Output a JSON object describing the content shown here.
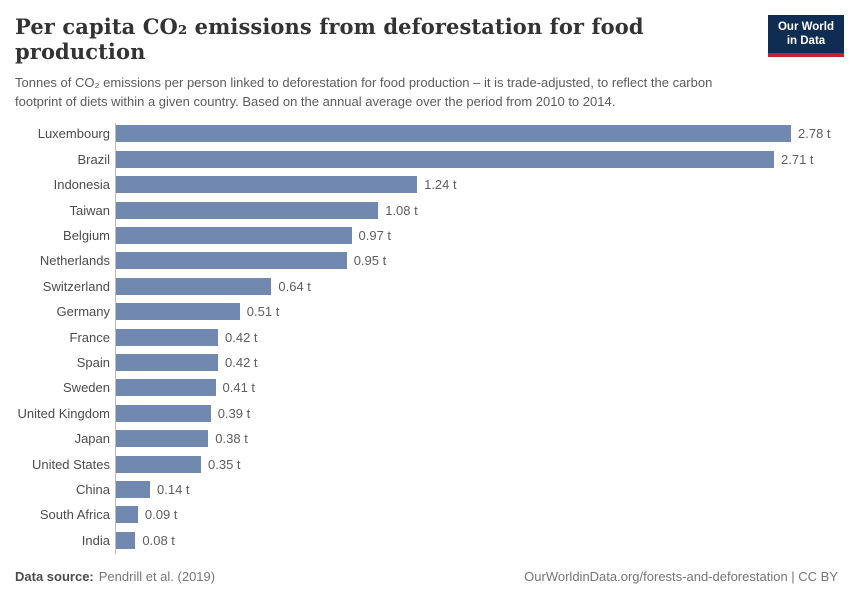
{
  "header": {
    "title": "Per capita CO₂ emissions from deforestation for food production",
    "subtitle": "Tonnes of CO₂ emissions per person linked to deforestation for food production – it is trade-adjusted, to reflect the carbon footprint of diets within a given country. Based on the annual average over the period from 2010 to 2014."
  },
  "logo": {
    "line1": "Our World",
    "line2": "in Data",
    "background_color": "#0f2d52",
    "accent_color": "#c0232b"
  },
  "chart_data": {
    "type": "bar",
    "orientation": "horizontal",
    "title": "Per capita CO₂ emissions from deforestation for food production",
    "categories": [
      "Luxembourg",
      "Brazil",
      "Indonesia",
      "Taiwan",
      "Belgium",
      "Netherlands",
      "Switzerland",
      "Germany",
      "France",
      "Spain",
      "Sweden",
      "United Kingdom",
      "Japan",
      "United States",
      "China",
      "South Africa",
      "India"
    ],
    "values": [
      2.78,
      2.71,
      1.24,
      1.08,
      0.97,
      0.95,
      0.64,
      0.51,
      0.42,
      0.42,
      0.41,
      0.39,
      0.38,
      0.35,
      0.14,
      0.09,
      0.08
    ],
    "value_labels": [
      "2.78 t",
      "2.71 t",
      "1.24 t",
      "1.08 t",
      "0.97 t",
      "0.95 t",
      "0.64 t",
      "0.51 t",
      "0.42 t",
      "0.42 t",
      "0.41 t",
      "0.39 t",
      "0.38 t",
      "0.35 t",
      "0.14 t",
      "0.09 t",
      "0.08 t"
    ],
    "unit": "t",
    "bar_color": "#7189b0",
    "xlim": [
      0,
      2.85
    ],
    "grid": false,
    "legend": "none"
  },
  "footer": {
    "data_source_label": "Data source:",
    "data_source_value": "Pendrill et al. (2019)",
    "attribution": "OurWorldinData.org/forests-and-deforestation | CC BY"
  }
}
